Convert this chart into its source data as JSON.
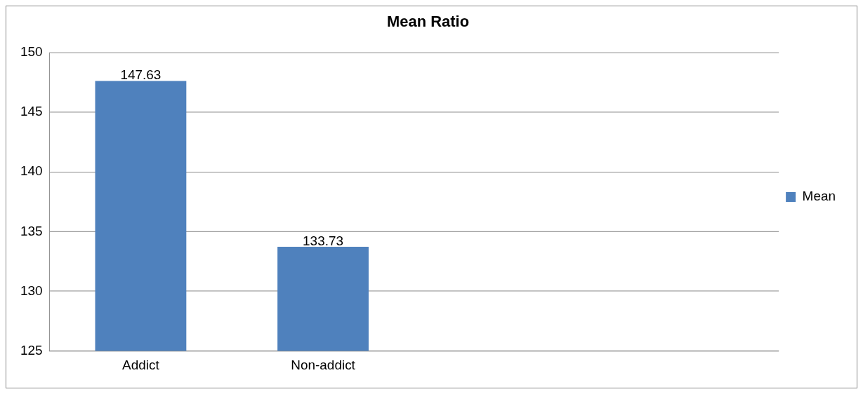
{
  "chart_data": {
    "type": "bar",
    "title": "Mean Ratio",
    "categories": [
      "Addict",
      "Non-addict",
      null,
      null
    ],
    "series": [
      {
        "name": "Mean",
        "color": "#4f81bd",
        "values": [
          147.63,
          133.73,
          null,
          null
        ]
      }
    ],
    "ylim": [
      125,
      150
    ],
    "yticks": [
      125,
      130,
      135,
      140,
      145,
      150
    ],
    "grid": "y",
    "legend": "right",
    "data_labels": true
  }
}
